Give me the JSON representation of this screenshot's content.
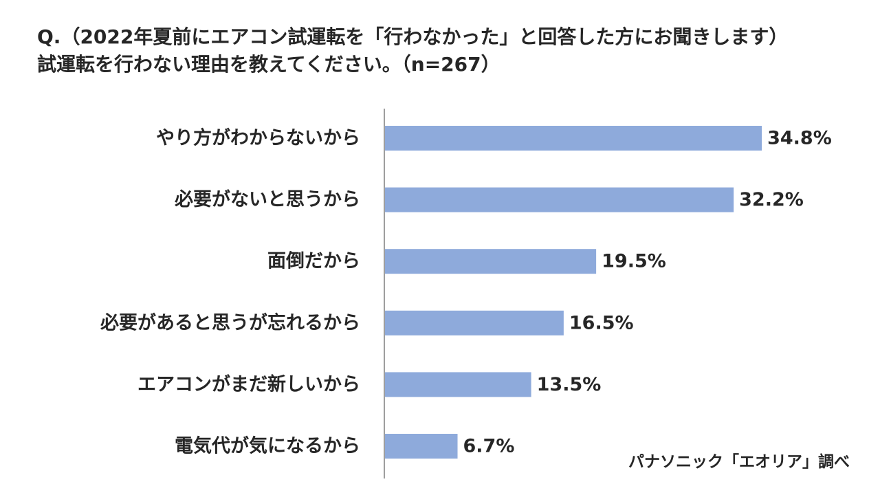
{
  "title": {
    "line1": "Q.（2022年夏前にエアコン試運転を「行わなかった」と回答した方にお聞きします）",
    "line2": "試運転を行わない理由を教えてください。（n=267）"
  },
  "source": "パナソニック「エオリア」調べ",
  "colors": {
    "bar": "#8eaadb",
    "axis": "#7f7f7f",
    "text": "#262626"
  },
  "chart_data": {
    "type": "bar",
    "orientation": "horizontal",
    "categories": [
      "やり方がわからないから",
      "必要がないと思うから",
      "面倒だから",
      "必要があると思うが忘れるから",
      "エアコンがまだ新しいから",
      "電気代が気になるから"
    ],
    "values": [
      34.8,
      32.2,
      19.5,
      16.5,
      13.5,
      6.7
    ],
    "value_labels": [
      "34.8%",
      "32.2%",
      "19.5%",
      "16.5%",
      "13.5%",
      "6.7%"
    ],
    "unit": "%",
    "xlim": [
      0,
      40
    ],
    "grid": false,
    "legend": "none"
  }
}
